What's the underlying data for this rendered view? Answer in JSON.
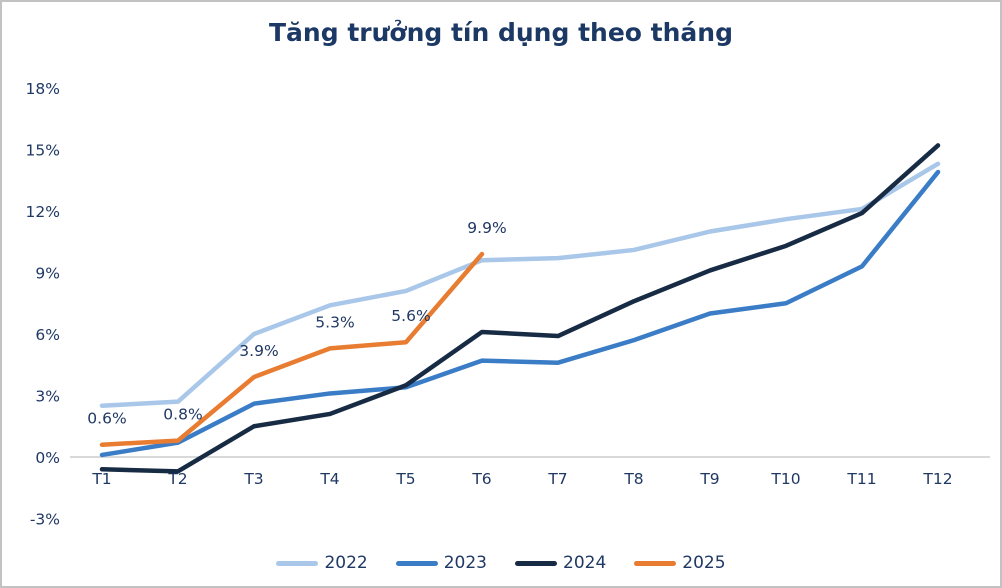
{
  "title": "Tăng trưởng tín dụng theo tháng",
  "colors": {
    "background": "#FFFFFF",
    "canvas_border": "#C2C2C2",
    "title_text": "#1C3864",
    "axis_text": "#1F3864",
    "data_label_text": "#1F3864",
    "zero_line": "#D9D9D9"
  },
  "chart_data": {
    "type": "line",
    "title": "Tăng trưởng tín dụng theo tháng",
    "categories": [
      "T1",
      "T2",
      "T3",
      "T4",
      "T5",
      "T6",
      "T7",
      "T8",
      "T9",
      "T10",
      "T11",
      "T12"
    ],
    "series": [
      {
        "name": "2022",
        "color": "#A9C7E9",
        "values": [
          2.5,
          2.7,
          6.0,
          7.4,
          8.1,
          9.6,
          9.7,
          10.1,
          11.0,
          11.6,
          12.1,
          14.3
        ]
      },
      {
        "name": "2023",
        "color": "#3A7DC6",
        "values": [
          0.1,
          0.7,
          2.6,
          3.1,
          3.4,
          4.7,
          4.6,
          5.7,
          7.0,
          7.5,
          9.3,
          13.9
        ]
      },
      {
        "name": "2024",
        "color": "#172B44",
        "values": [
          -0.6,
          -0.7,
          1.5,
          2.1,
          3.5,
          6.1,
          5.9,
          7.6,
          9.1,
          10.3,
          11.9,
          15.2
        ]
      },
      {
        "name": "2025",
        "color": "#E87C31",
        "values": [
          0.6,
          0.8,
          3.9,
          5.3,
          5.6,
          9.9
        ],
        "data_labels": [
          "0.6%",
          "0.8%",
          "3.9%",
          "5.3%",
          "5.6%",
          "9.9%"
        ]
      }
    ],
    "ylim": [
      -3,
      18
    ],
    "yticks": [
      {
        "value": 18,
        "label": "18%"
      },
      {
        "value": 15,
        "label": "15%"
      },
      {
        "value": 12,
        "label": "12%"
      },
      {
        "value": 9,
        "label": "9%"
      },
      {
        "value": 6,
        "label": "6%"
      },
      {
        "value": 3,
        "label": "3%"
      },
      {
        "value": 0,
        "label": "0%"
      },
      {
        "value": -3,
        "label": "-3%"
      }
    ],
    "grid": "zero-line-only",
    "legend_position": "bottom"
  }
}
